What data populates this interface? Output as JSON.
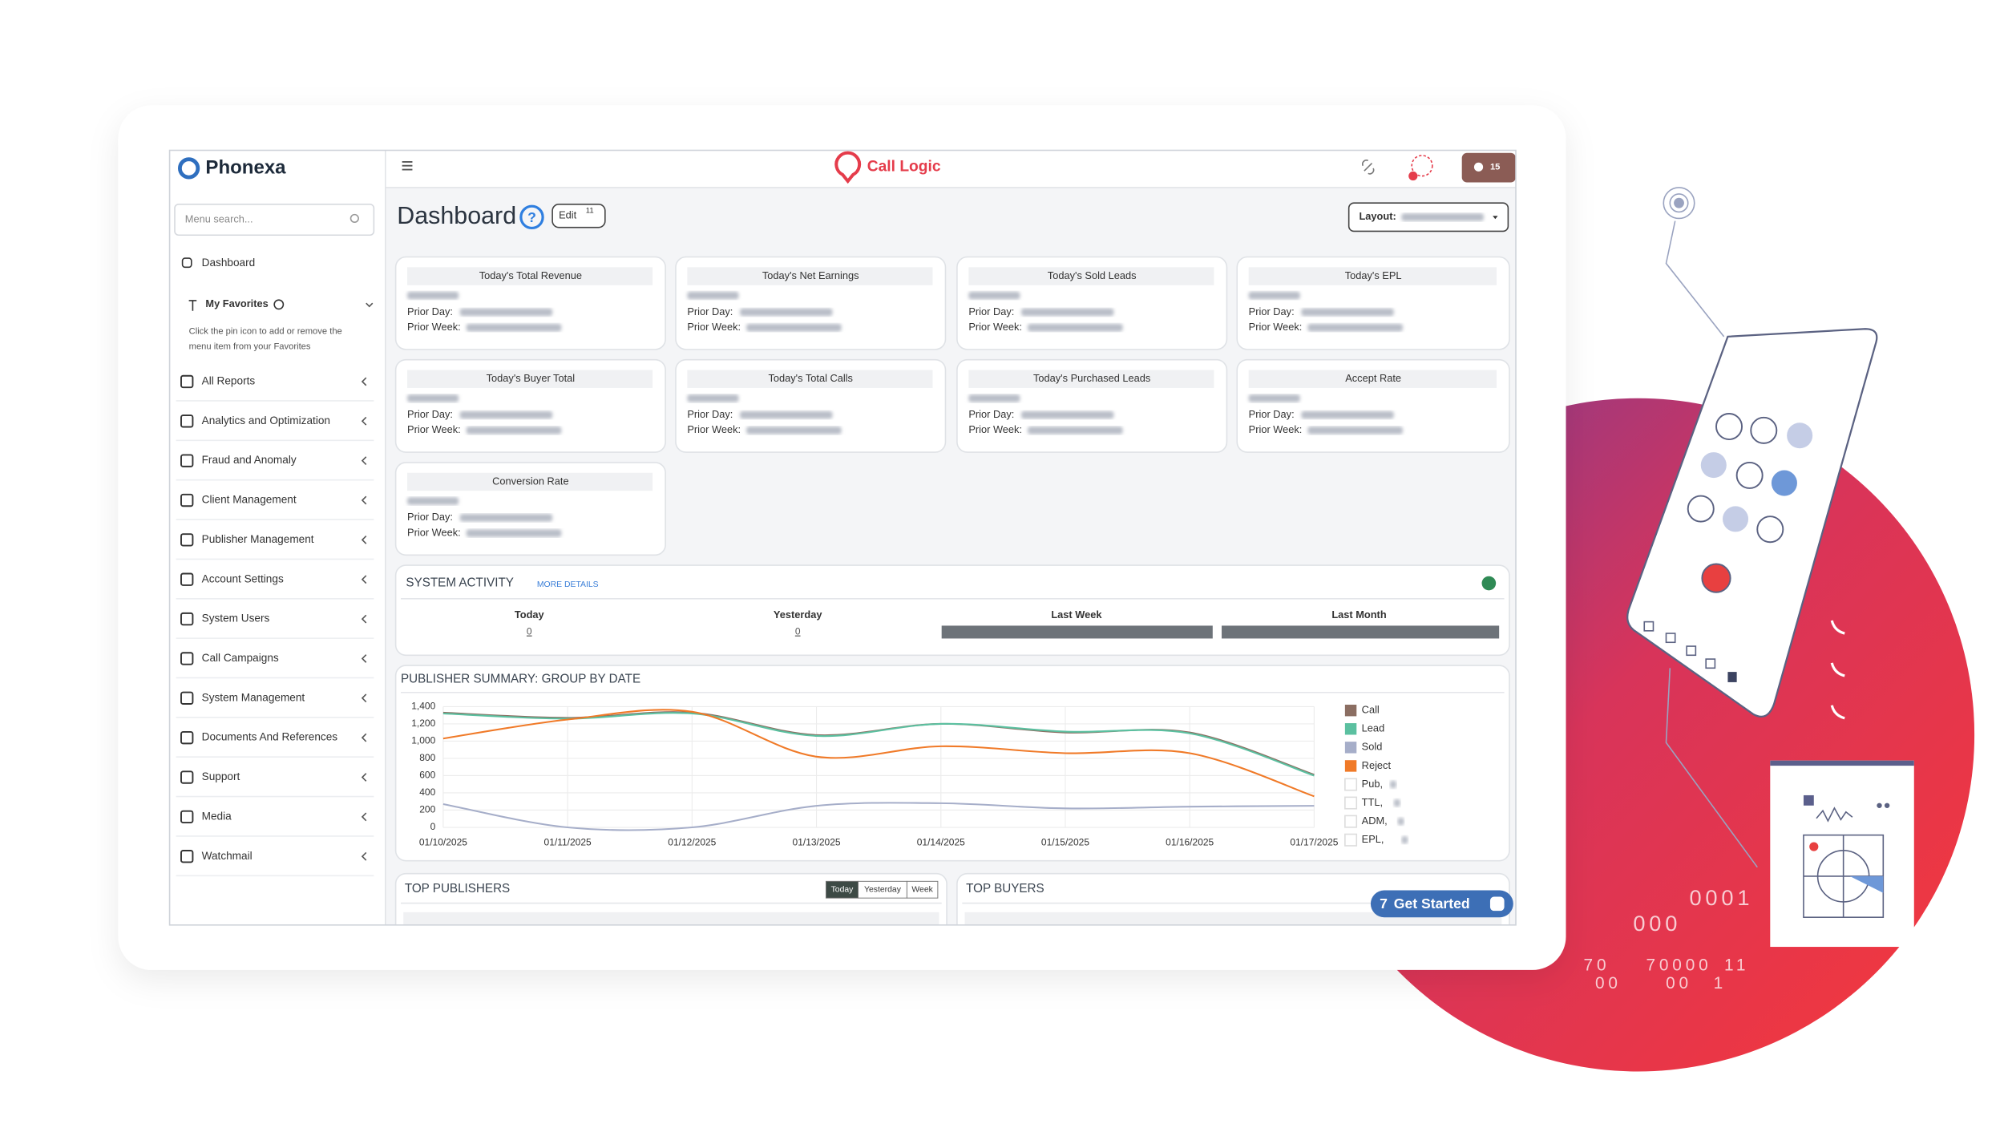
{
  "brand": "Phonexa",
  "app_name": "Call Logic",
  "notification_count": "15",
  "sidebar": {
    "search_placeholder": "Menu search...",
    "dashboard": "Dashboard",
    "favorites_title": "My Favorites",
    "favorites_hint": [
      "Click the pin icon to add or remove the",
      "menu item from your Favorites"
    ],
    "items": [
      "All Reports",
      "Analytics and Optimization",
      "Fraud and Anomaly",
      "Client Management",
      "Publisher Management",
      "Account Settings",
      "System Users",
      "Call Campaigns",
      "System Management",
      "Documents And References",
      "Support",
      "Media",
      "Watchmail"
    ]
  },
  "dashboard": {
    "title": "Dashboard",
    "edit": "Edit",
    "edit_count": "11",
    "layout_label": "Layout:"
  },
  "cards": {
    "prior_day_label": "Prior Day:",
    "prior_week_label": "Prior Week:",
    "titles": [
      "Today's Total Revenue",
      "Today's Net Earnings",
      "Today's Sold Leads",
      "Today's EPL",
      "Today's Buyer Total",
      "Today's Total Calls",
      "Today's Purchased Leads",
      "Accept Rate",
      "Conversion Rate"
    ]
  },
  "system_activity": {
    "title": "SYSTEM ACTIVITY",
    "more": "MORE DETAILS",
    "columns": [
      {
        "label": "Today",
        "value": "0"
      },
      {
        "label": "Yesterday",
        "value": "0"
      },
      {
        "label": "Last Week"
      },
      {
        "label": "Last Month"
      }
    ]
  },
  "chart_data": {
    "type": "line",
    "title": "PUBLISHER SUMMARY: GROUP BY DATE",
    "categories": [
      "01/10/2025",
      "01/11/2025",
      "01/12/2025",
      "01/13/2025",
      "01/14/2025",
      "01/15/2025",
      "01/16/2025",
      "01/17/2025"
    ],
    "ylim": [
      0,
      1400
    ],
    "yticks": [
      0,
      200,
      400,
      600,
      800,
      {
        "value": 1000,
        "label": "1,000"
      },
      {
        "value": 1200,
        "label": "1,200"
      },
      {
        "value": 1400,
        "label": "1,400"
      }
    ],
    "grid": true,
    "series": [
      {
        "name": "Call",
        "color": "#8b6e62",
        "values": [
          1330,
          1270,
          1330,
          1070,
          1200,
          1100,
          1100,
          610
        ]
      },
      {
        "name": "Lead",
        "color": "#5bc0a0",
        "values": [
          1320,
          1260,
          1320,
          1060,
          1200,
          1110,
          1090,
          600
        ]
      },
      {
        "name": "Sold",
        "color": "#a6aec9",
        "values": [
          270,
          0,
          0,
          250,
          280,
          220,
          240,
          250
        ]
      },
      {
        "name": "Reject",
        "color": "#f07a28",
        "values": [
          1030,
          1250,
          1340,
          820,
          940,
          860,
          860,
          360
        ]
      }
    ],
    "legend_extra": [
      "Pub,",
      "TTL,",
      "ADM,",
      "EPL,"
    ]
  },
  "top_publishers": {
    "title": "TOP PUBLISHERS",
    "tabs": [
      "Today",
      "Yesterday",
      "Week"
    ]
  },
  "top_buyers": {
    "title": "TOP BUYERS"
  },
  "get_started": {
    "count": "7",
    "label": "Get Started"
  },
  "decor_numbers": [
    "0001",
    "000",
    "70",
    "70000",
    "11",
    "00",
    "00",
    "1"
  ]
}
